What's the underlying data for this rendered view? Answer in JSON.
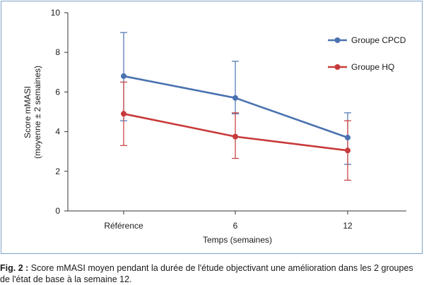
{
  "chart_data": {
    "type": "line",
    "categories": [
      "Référence",
      "6",
      "12"
    ],
    "xlabel": "Temps (semaines)",
    "ylabel_lines": [
      "Score mMASI",
      "(moyenne ± 2 semaines)"
    ],
    "ylim": [
      0,
      10
    ],
    "yticks": [
      0,
      2,
      4,
      6,
      8,
      10
    ],
    "grid": false,
    "legend_position": "top-right",
    "series": [
      {
        "name": "Groupe CPCD",
        "color": "#4a72b0",
        "values": [
          6.8,
          5.7,
          3.7
        ],
        "err_low": [
          4.55,
          4.9,
          2.35
        ],
        "err_high": [
          9.0,
          7.55,
          4.95
        ]
      },
      {
        "name": "Groupe HQ",
        "color": "#c83a3a",
        "values": [
          4.9,
          3.75,
          3.05
        ],
        "err_low": [
          3.3,
          2.65,
          1.55
        ],
        "err_high": [
          6.5,
          4.95,
          4.55
        ]
      }
    ]
  },
  "caption": {
    "label": "Fig. 2 :",
    "text": " Score mMASI moyen pendant la durée de l'étude objectivant une amélioration dans les 2 groupes de l'état de base à la semaine 12."
  }
}
